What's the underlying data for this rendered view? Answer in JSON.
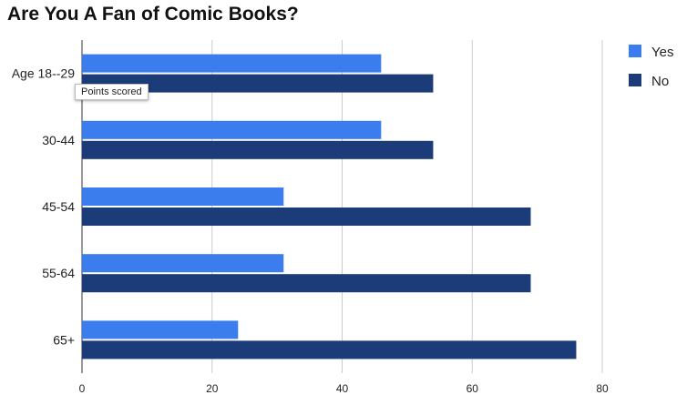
{
  "chart_data": {
    "type": "bar",
    "orientation": "horizontal",
    "title": "Are You A Fan of Comic Books?",
    "xlabel": "",
    "ylabel": "",
    "categories": [
      "Age 18--29",
      "30-44",
      "45-54",
      "55-64",
      "65+"
    ],
    "series": [
      {
        "name": "Yes",
        "values": [
          46,
          46,
          31,
          31,
          24
        ],
        "color": "#3b7ded"
      },
      {
        "name": "No",
        "values": [
          54,
          54,
          69,
          69,
          76
        ],
        "color": "#1b3c78"
      }
    ],
    "xlim": [
      0,
      80
    ],
    "xticks": [
      0,
      20,
      40,
      60,
      80
    ],
    "grid": true,
    "legend": "top-right"
  },
  "tooltip": {
    "text": "Points scored"
  }
}
